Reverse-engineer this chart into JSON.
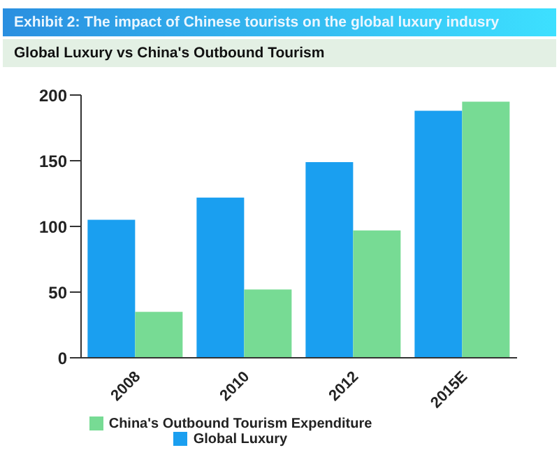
{
  "chart_data": {
    "type": "bar",
    "title": "Exhibit 2: The impact of Chinese tourists on the global luxury indusry",
    "subtitle": "Global Luxury vs China's Outbound Tourism",
    "categories": [
      "2008",
      "2010",
      "2012",
      "2015E"
    ],
    "series": [
      {
        "name": "Global Luxury",
        "color": "#1a9ff0",
        "values": [
          105,
          122,
          149,
          188
        ]
      },
      {
        "name": "China's Outbound Tourism Expenditure",
        "color": "#77db94",
        "values": [
          35,
          52,
          97,
          195
        ]
      }
    ],
    "ylim": [
      0,
      200
    ],
    "yticks": [
      0,
      50,
      100,
      150,
      200
    ],
    "grid": false,
    "legend": "bottom"
  }
}
